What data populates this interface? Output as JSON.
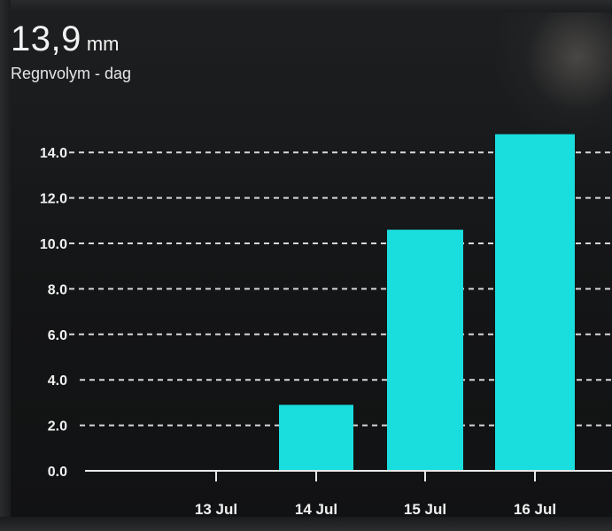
{
  "sensor": {
    "value": "13,9",
    "unit": "mm",
    "name": "Regnvolym - dag"
  },
  "chart_data": {
    "type": "bar",
    "categories": [
      "13 Jul",
      "14 Jul",
      "15 Jul",
      "16 Jul"
    ],
    "values": [
      0,
      2.9,
      10.6,
      14.8
    ],
    "title": "",
    "xlabel": "",
    "ylabel": "",
    "ylim": [
      0,
      15.2
    ],
    "yticks": [
      "0.0",
      "2.0",
      "4.0",
      "6.0",
      "8.0",
      "10.0",
      "12.0",
      "14.0"
    ],
    "grid": true,
    "bar_color": "#19dedd",
    "grid_color": "#d8d8d8"
  }
}
